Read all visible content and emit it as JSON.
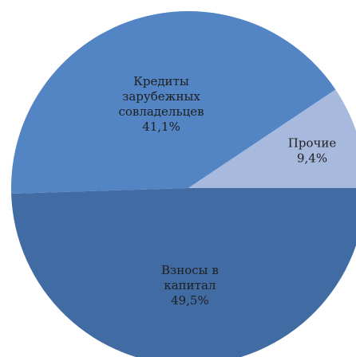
{
  "chart_data": {
    "type": "pie",
    "slices": [
      {
        "label_lines": [
          "Взносы в",
          "капитал"
        ],
        "value": 49.5,
        "value_text": "49,5%",
        "color": "#416ba3"
      },
      {
        "label_lines": [
          "Кредиты",
          "зарубежных",
          "совладельцев"
        ],
        "value": 41.1,
        "value_text": "41,1%",
        "color": "#5384c4"
      },
      {
        "label_lines": [
          "Прочие"
        ],
        "value": 9.4,
        "value_text": "9,4%",
        "color": "#a8b9de"
      }
    ]
  }
}
